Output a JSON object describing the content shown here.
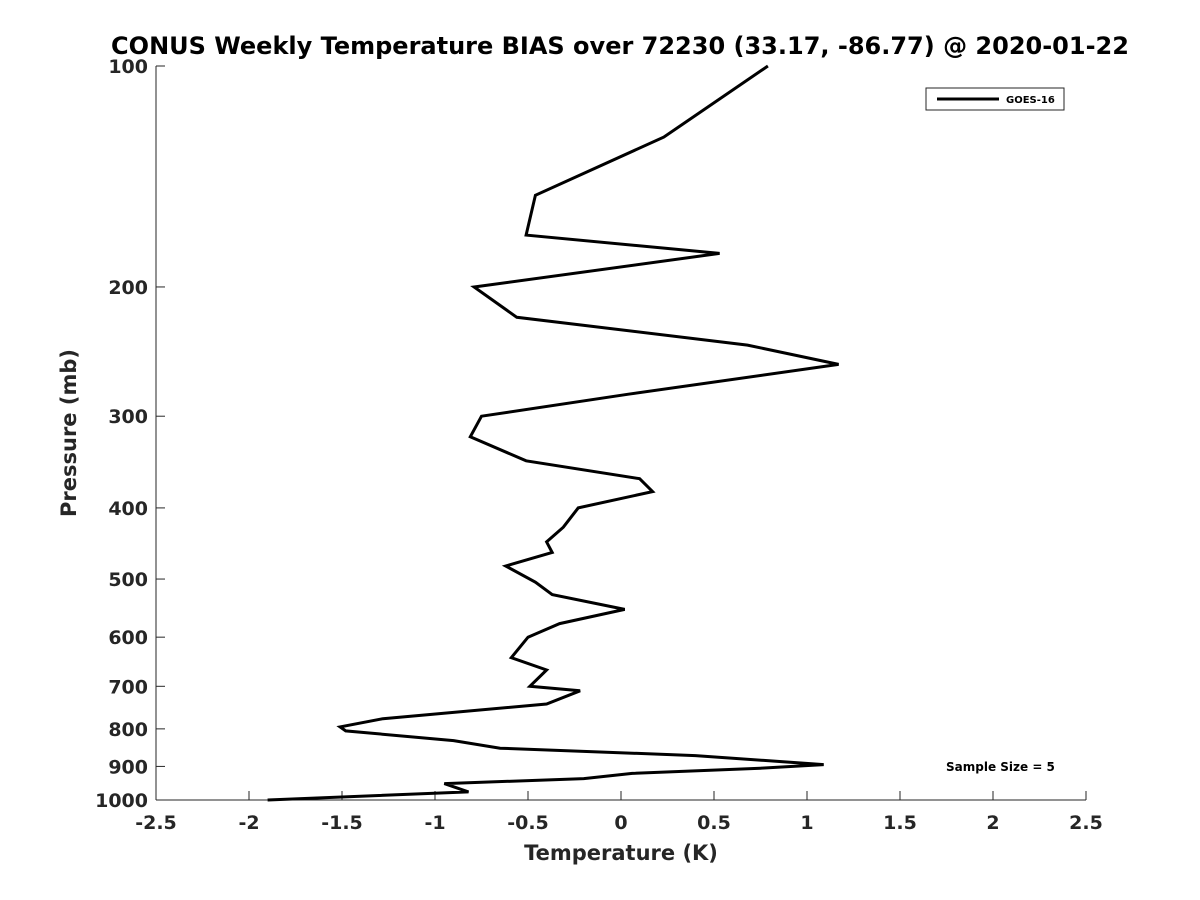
{
  "chart_data": {
    "type": "line",
    "title": "CONUS Weekly Temperature BIAS over 72230 (33.17, -86.77) @ 2020-01-22",
    "xlabel": "Temperature (K)",
    "ylabel": "Pressure (mb)",
    "xlim": [
      -2.5,
      2.5
    ],
    "ylim": [
      100,
      1000
    ],
    "y_scale": "log",
    "y_reversed": true,
    "grid": false,
    "legend": "top-right",
    "xticks": [
      "-2.5",
      "-2",
      "-1.5",
      "-1",
      "-0.5",
      "0",
      "0.5",
      "1",
      "1.5",
      "2",
      "2.5"
    ],
    "yticks": [
      "100",
      "200",
      "300",
      "400",
      "500",
      "600",
      "700",
      "800",
      "900",
      "1000"
    ],
    "annotation": "Sample Size = 5",
    "series": [
      {
        "name": "GOES-16",
        "color": "#000000",
        "points": [
          [
            0.79,
            100
          ],
          [
            0.23,
            125
          ],
          [
            -0.46,
            150
          ],
          [
            -0.51,
            170
          ],
          [
            0.53,
            180
          ],
          [
            -0.79,
            200
          ],
          [
            -0.56,
            220
          ],
          [
            0.68,
            240
          ],
          [
            1.17,
            255
          ],
          [
            0.04,
            280
          ],
          [
            -0.75,
            300
          ],
          [
            -0.81,
            320
          ],
          [
            -0.51,
            345
          ],
          [
            0.1,
            365
          ],
          [
            0.17,
            380
          ],
          [
            -0.23,
            400
          ],
          [
            -0.31,
            425
          ],
          [
            -0.4,
            445
          ],
          [
            -0.37,
            460
          ],
          [
            -0.62,
            480
          ],
          [
            -0.46,
            505
          ],
          [
            -0.37,
            525
          ],
          [
            0.02,
            550
          ],
          [
            -0.33,
            575
          ],
          [
            -0.5,
            600
          ],
          [
            -0.59,
            640
          ],
          [
            -0.4,
            665
          ],
          [
            -0.49,
            700
          ],
          [
            -0.22,
            710
          ],
          [
            -0.4,
            740
          ],
          [
            -1.28,
            775
          ],
          [
            -1.51,
            795
          ],
          [
            -1.48,
            805
          ],
          [
            -0.9,
            830
          ],
          [
            -0.65,
            850
          ],
          [
            0.4,
            870
          ],
          [
            1.09,
            895
          ],
          [
            0.75,
            905
          ],
          [
            0.06,
            920
          ],
          [
            -0.2,
            935
          ],
          [
            -0.95,
            950
          ],
          [
            -0.82,
            975
          ],
          [
            -1.9,
            1000
          ]
        ]
      }
    ]
  }
}
